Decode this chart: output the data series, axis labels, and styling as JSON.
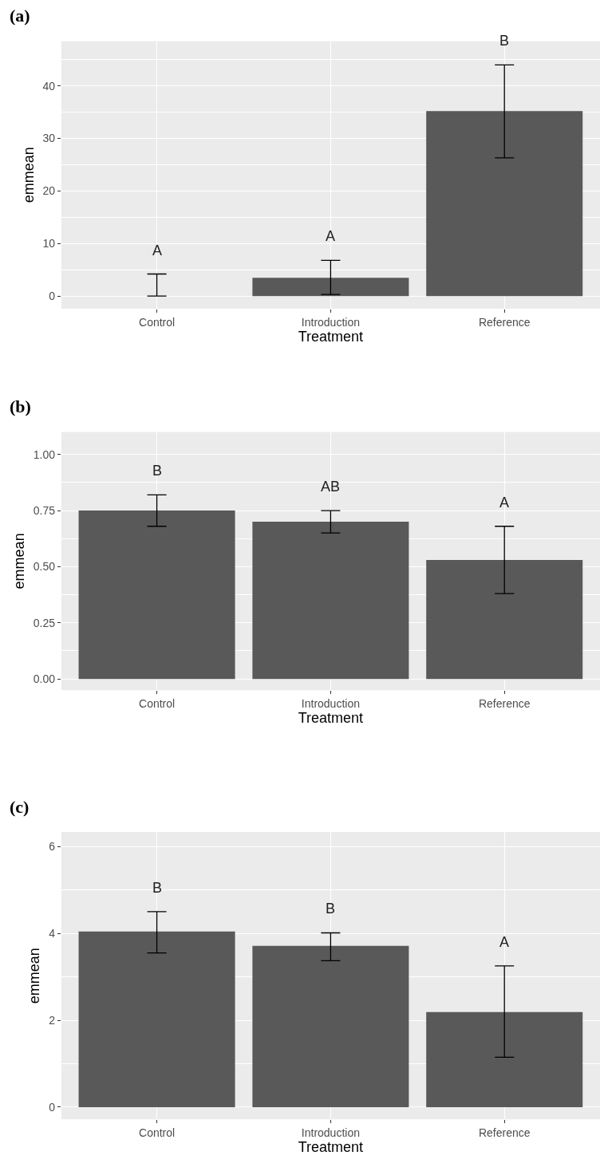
{
  "chart_data": [
    {
      "type": "bar",
      "title": "(a)",
      "xlabel": "Treatment",
      "ylabel": "emmean",
      "categories": [
        "Control",
        "Introduction",
        "Reference"
      ],
      "values": [
        0,
        3.5,
        35.2
      ],
      "errors": [
        [
          0,
          4.2
        ],
        [
          0.3,
          6.8
        ],
        [
          26.3,
          44.0
        ]
      ],
      "color": "#595959",
      "ylim": [
        -2.4,
        48.5
      ],
      "yticks": [
        0,
        10,
        20,
        30,
        40
      ],
      "grid": true,
      "annotations": [
        "A",
        "A",
        "B"
      ]
    },
    {
      "type": "bar",
      "title": "(b)",
      "xlabel": "Treatment",
      "ylabel": "emmean",
      "categories": [
        "Control",
        "Introduction",
        "Reference"
      ],
      "values": [
        0.75,
        0.7,
        0.53
      ],
      "errors": [
        [
          0.68,
          0.82
        ],
        [
          0.65,
          0.75
        ],
        [
          0.38,
          0.68
        ]
      ],
      "color": "#595959",
      "ylim": [
        -0.05,
        1.1
      ],
      "yticks": [
        {
          "value": 0,
          "label": "0.00"
        },
        {
          "value": 0.25,
          "label": "0.25"
        },
        {
          "value": 0.5,
          "label": "0.50"
        },
        {
          "value": 0.75,
          "label": "0.75"
        },
        {
          "value": 1,
          "label": "1.00"
        }
      ],
      "grid": true,
      "annotations": [
        "B",
        "AB",
        "A"
      ]
    },
    {
      "type": "bar",
      "title": "(c)",
      "xlabel": "Treatment",
      "ylabel": "emmean",
      "categories": [
        "Control",
        "Introduction",
        "Reference"
      ],
      "values": [
        4.04,
        3.71,
        2.19
      ],
      "errors": [
        [
          3.55,
          4.5
        ],
        [
          3.37,
          4.01
        ],
        [
          1.15,
          3.25
        ]
      ],
      "color": "#595959",
      "ylim": [
        -0.28,
        6.33
      ],
      "yticks": [
        0,
        2,
        4,
        6
      ],
      "grid": true,
      "annotations": [
        "B",
        "B",
        "A"
      ]
    }
  ]
}
